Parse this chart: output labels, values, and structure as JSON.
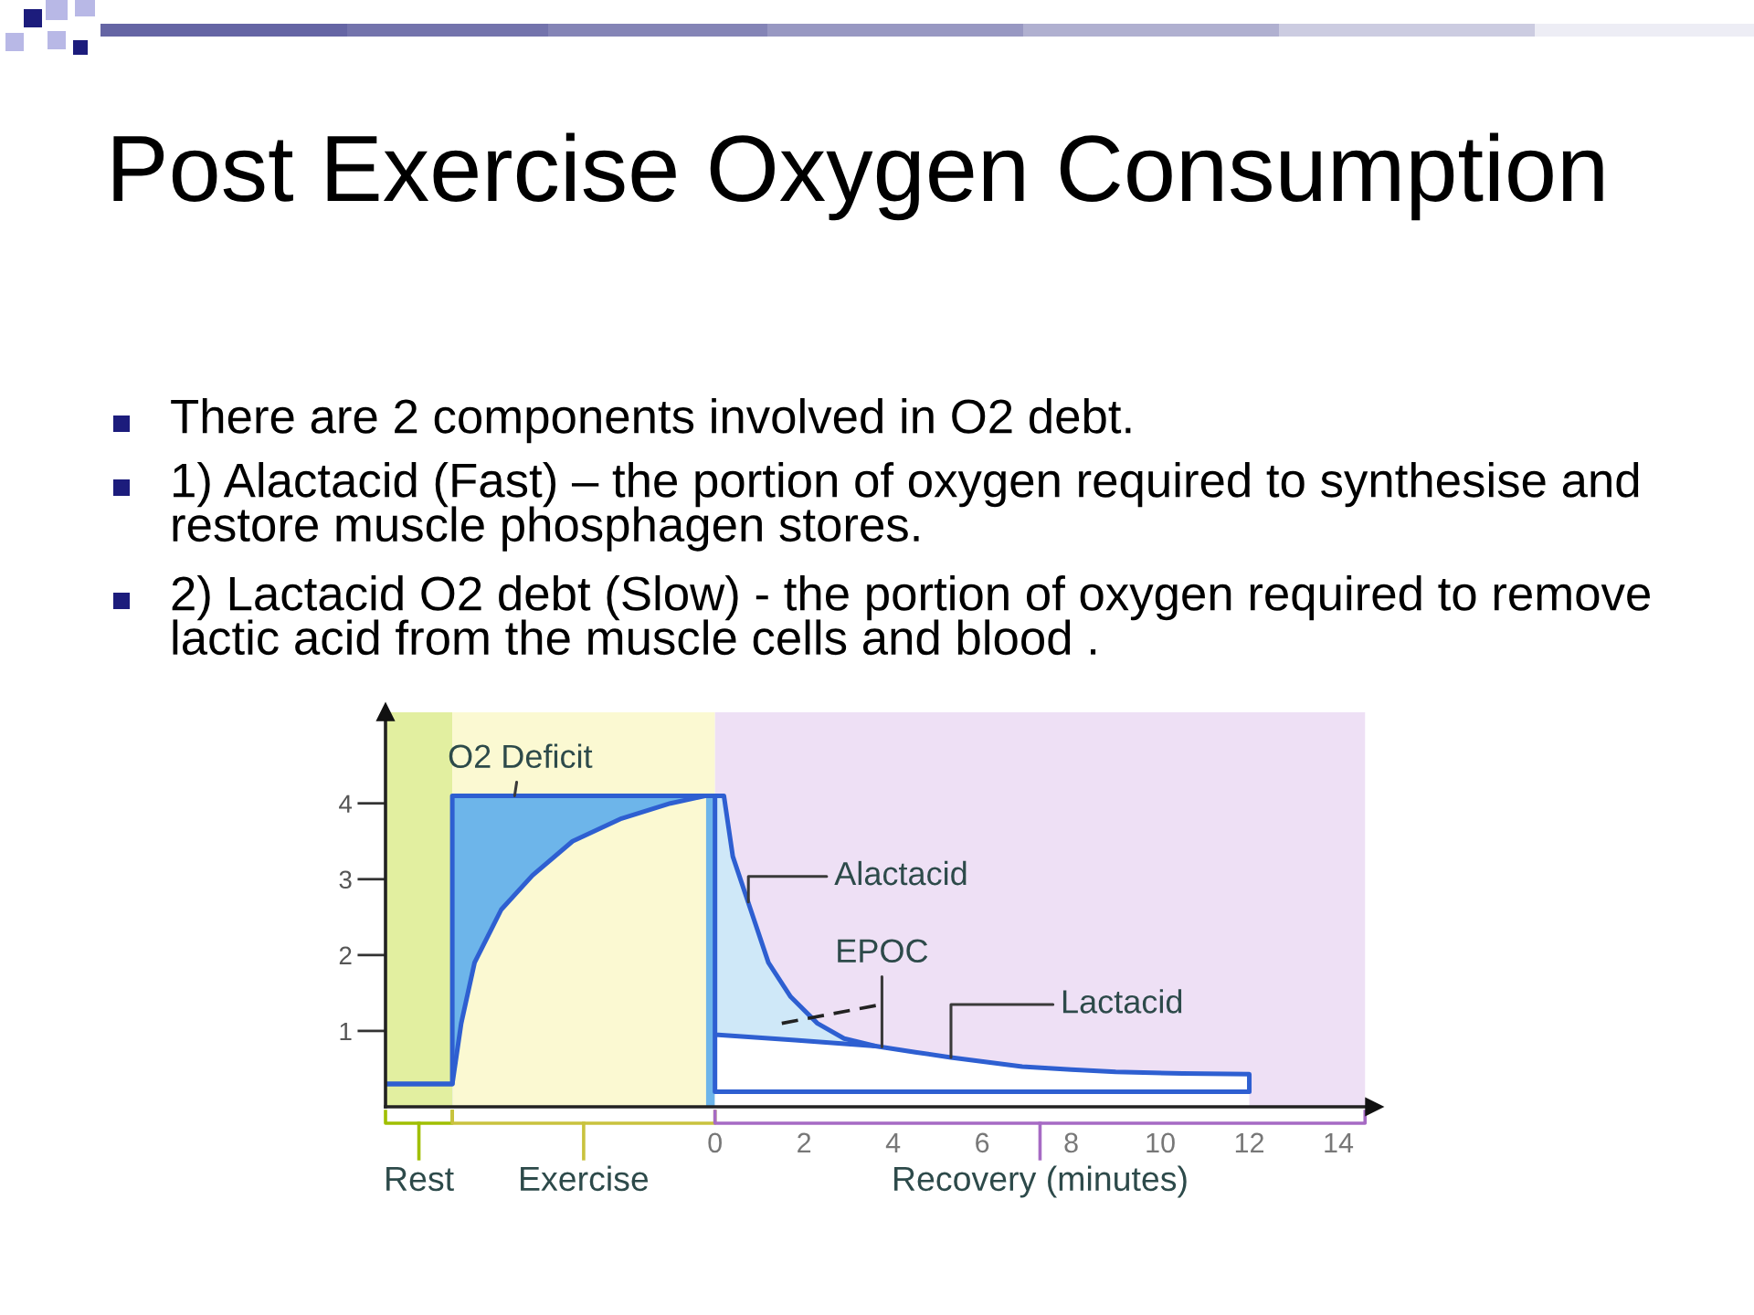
{
  "chart_data": {
    "type": "line",
    "title": "Post Exercise Oxygen Consumption",
    "annotations": [
      "There are 2 components involved in O2 debt.",
      "1) Alactacid (Fast) – the portion of oxygen required to synthesise and restore muscle phosphagen stores.",
      "2) Lactacid O2 debt (Slow) - the portion of oxygen required to remove lactic acid from the muscle cells and blood .",
      {
        "text": "O2 Deficit",
        "x": -4.5,
        "y": 4.1
      },
      {
        "text": "Alactacid",
        "x": 0.75,
        "y": 2.7
      },
      {
        "text": "EPOC",
        "x": 3.75,
        "y": 0.79
      },
      {
        "text": "Lactacid",
        "x": 5.3,
        "y": 0.65
      }
    ],
    "xlim": [
      -7.4,
      14.8
    ],
    "xticks": [
      0,
      2,
      4,
      6,
      8,
      10,
      12,
      14
    ],
    "ylim": [
      0,
      5.2
    ],
    "yticks": [
      1,
      2,
      3,
      4
    ],
    "bands": [
      {
        "axis": "x",
        "from": -7.4,
        "to": -5.9,
        "label": "Rest",
        "color": "#e2efa0"
      },
      {
        "axis": "x",
        "from": -5.9,
        "to": 0,
        "label": "Exercise",
        "color": "#fbf9d2"
      },
      {
        "axis": "x",
        "from": 0,
        "to": 14.6,
        "label": "Recovery (minutes)",
        "color": "#eee0f5"
      }
    ],
    "series": [
      {
        "color": "#2e5fd1",
        "x": [
          -7.4,
          -5.9,
          -5.9,
          0,
          0,
          12,
          12,
          10.5,
          9.0,
          8.0,
          6.9,
          5.3,
          4.5,
          3.6,
          1.8,
          0
        ],
        "values": [
          0.3,
          0.3,
          4.1,
          4.1,
          0.2,
          0.2,
          0.43,
          0.44,
          0.46,
          0.49,
          0.53,
          0.65,
          0.72,
          0.8,
          0.88,
          0.95
        ]
      },
      {
        "color": "#2e5fd1",
        "x": [
          -7.4,
          -5.9,
          -5.7,
          -5.4,
          -4.8,
          -4.1,
          -3.2,
          -2.1,
          -1.0,
          -0.2,
          0.2,
          0.4,
          0.8,
          1.2,
          1.7,
          2.3,
          2.9,
          3.6
        ],
        "values": [
          0.3,
          0.3,
          1.1,
          1.9,
          2.6,
          3.05,
          3.5,
          3.8,
          4.0,
          4.1,
          4.1,
          3.3,
          2.6,
          1.9,
          1.45,
          1.1,
          0.9,
          0.8
        ]
      },
      {
        "color": "#222222",
        "line_style": "dashed",
        "x": [
          1.5,
          3.75
        ],
        "values": [
          1.1,
          1.35
        ]
      },
      {
        "type": "area",
        "color": "#6db5ea",
        "x": [
          -5.9,
          0
        ],
        "values": [
          4.1,
          4.1
        ]
      },
      {
        "type": "area",
        "color": "#fbf9d2",
        "x": [
          -5.9,
          -5.7,
          -5.4,
          -4.8,
          -4.1,
          -3.2,
          -2.1,
          -1.0,
          -0.2
        ],
        "values": [
          0.3,
          1.1,
          1.9,
          2.6,
          3.05,
          3.5,
          3.8,
          4.0,
          4.1
        ]
      },
      {
        "type": "area",
        "color": "#cfe8f8",
        "x": [
          0,
          0.2,
          0.4,
          0.8,
          1.2,
          1.7,
          2.3,
          2.9,
          3.6
        ],
        "values": [
          4.1,
          4.1,
          3.3,
          2.6,
          1.9,
          1.45,
          1.1,
          0.9,
          0.8
        ]
      },
      {
        "type": "area",
        "color": "#ffffff",
        "x": [
          0,
          3.6,
          5.3,
          6.9,
          9.0,
          12.0
        ],
        "values": [
          0.95,
          0.8,
          0.65,
          0.53,
          0.46,
          0.43
        ]
      }
    ]
  }
}
